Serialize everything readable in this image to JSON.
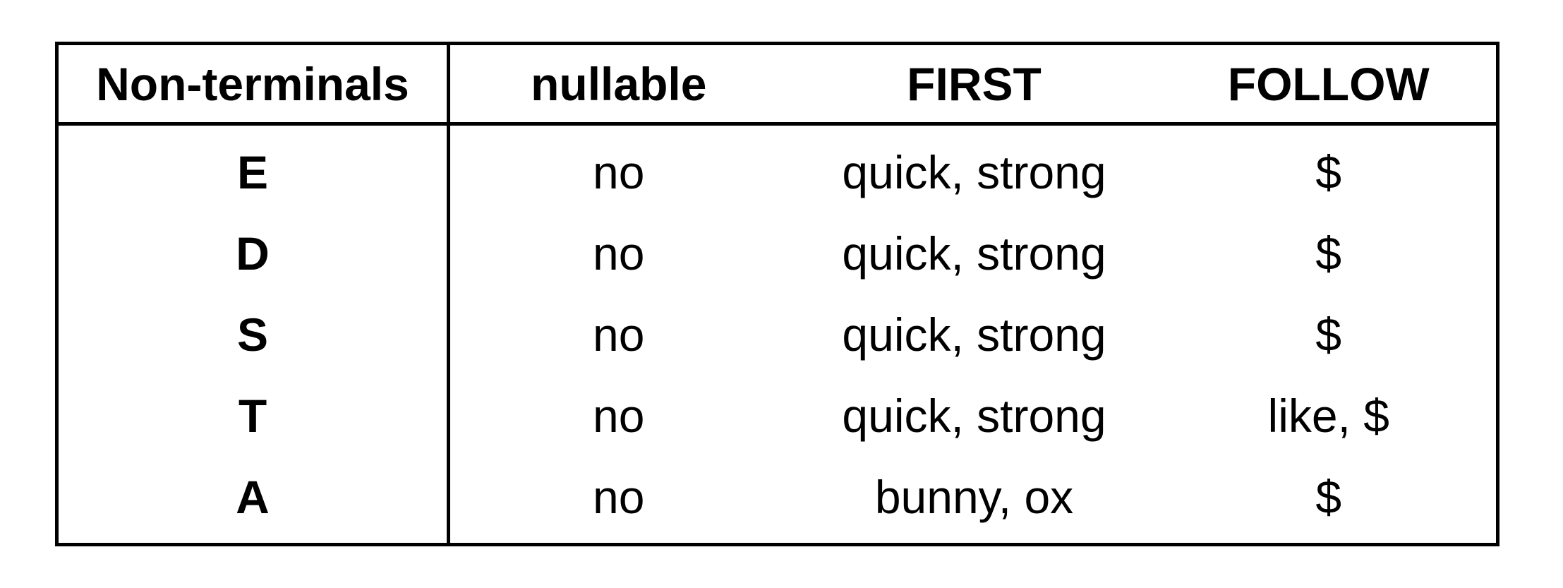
{
  "table": {
    "headers": [
      "Non-terminals",
      "nullable",
      "FIRST",
      "FOLLOW"
    ],
    "rows": [
      {
        "nonterminal": "E",
        "nullable": "no",
        "first": "quick, strong",
        "follow": "$"
      },
      {
        "nonterminal": "D",
        "nullable": "no",
        "first": "quick, strong",
        "follow": "$"
      },
      {
        "nonterminal": "S",
        "nullable": "no",
        "first": "quick, strong",
        "follow": "$"
      },
      {
        "nonterminal": "T",
        "nullable": "no",
        "first": "quick, strong",
        "follow": "like, $"
      },
      {
        "nonterminal": "A",
        "nullable": "no",
        "first": "bunny, ox",
        "follow": "$"
      }
    ]
  }
}
